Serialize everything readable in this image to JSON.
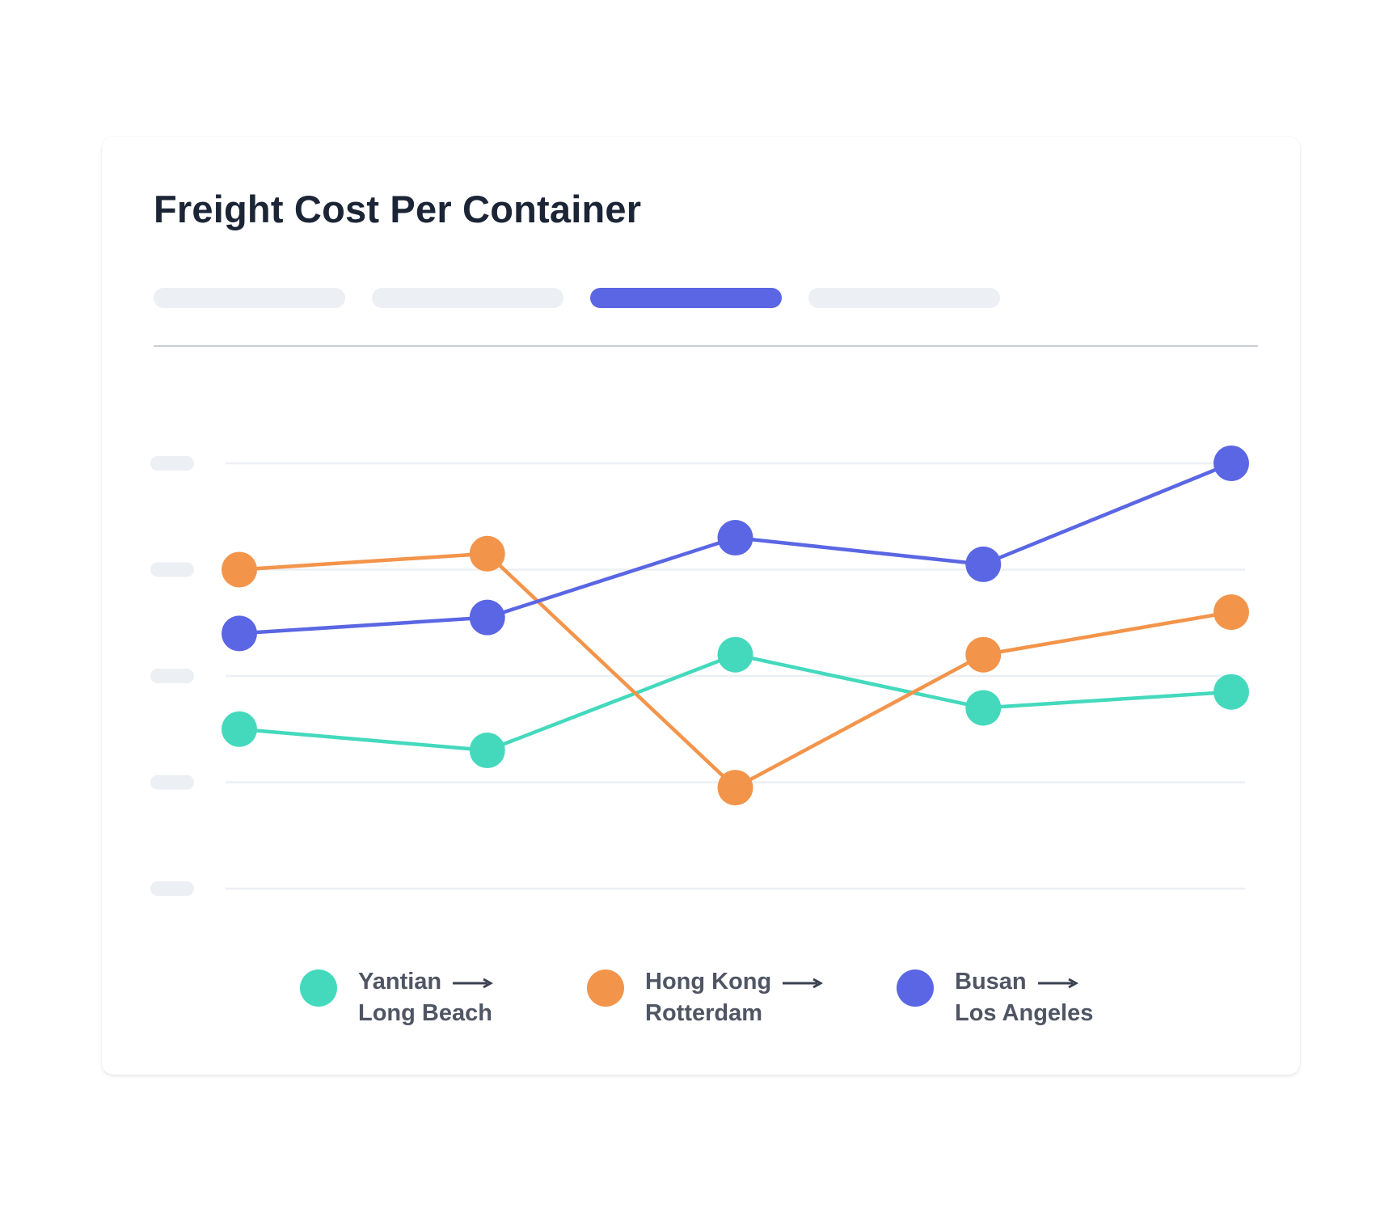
{
  "card": {
    "title": "Freight Cost Per Container",
    "tabs": [
      {
        "label": "",
        "active": false
      },
      {
        "label": "",
        "active": false
      },
      {
        "label": "",
        "active": true
      },
      {
        "label": "",
        "active": false
      }
    ]
  },
  "colors": {
    "teal": "#44d9bd",
    "orange": "#f3944b",
    "indigo": "#5a66e3",
    "title": "#1b2536",
    "legend_text": "#4f5563",
    "gridline": "#eceff3",
    "tab_inactive": "#eceff3",
    "tab_active": "#5a66e3"
  },
  "chart_data": {
    "type": "line",
    "title": "Freight Cost Per Container",
    "xlabel": "",
    "ylabel": "",
    "x": [
      1,
      2,
      3,
      4,
      5
    ],
    "ylim": [
      0,
      4
    ],
    "y_ticks": [
      0,
      1,
      2,
      3,
      4
    ],
    "y_tick_labels": [
      "",
      "",
      "",
      "",
      ""
    ],
    "grid": true,
    "legend_position": "bottom",
    "series": [
      {
        "name": "Yantian → Long Beach",
        "origin": "Yantian",
        "destination": "Long Beach",
        "color": "#44d9bd",
        "values": [
          1.5,
          1.3,
          2.2,
          1.7,
          1.85
        ]
      },
      {
        "name": "Hong Kong → Rotterdam",
        "origin": "Hong Kong",
        "destination": "Rotterdam",
        "color": "#f3944b",
        "values": [
          3.0,
          3.15,
          0.95,
          2.2,
          2.6
        ]
      },
      {
        "name": "Busan → Los Angeles",
        "origin": "Busan",
        "destination": "Los Angeles",
        "color": "#5a66e3",
        "values": [
          2.4,
          2.55,
          3.3,
          3.05,
          4.0
        ]
      }
    ]
  }
}
